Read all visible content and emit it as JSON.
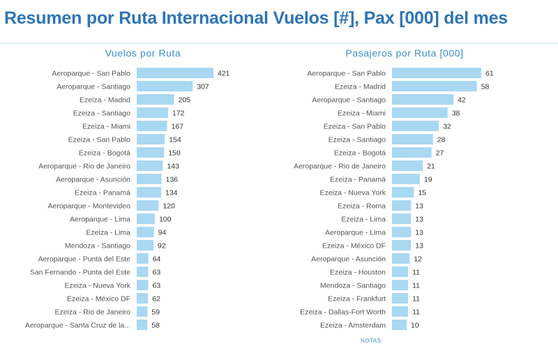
{
  "page": {
    "title": "Resumen por Ruta Internacional Vuelos [#], Pax [000] del mes",
    "notes_label": "NOTAS:"
  },
  "colors": {
    "title": "#2e74b5",
    "bar": "#a9d8f2",
    "chart_title": "#3b8fcc"
  },
  "chart_data": [
    {
      "type": "bar",
      "orientation": "horizontal",
      "title": "Vuelos por Ruta",
      "categories": [
        "Aeroparque - San Pablo",
        "Aeroparque - Santiago",
        "Ezeiza - Madrid",
        "Ezeiza - Santiago",
        "Ezeiza - Miami",
        "Ezeiza - San Pablo",
        "Ezeiza - Bogotá",
        "Aeroparque - Rio de Janeiro",
        "Aeroparque - Asunción",
        "Ezeiza - Panamá",
        "Aeroparque - Montevideo",
        "Aeroparque - Lima",
        "Ezeiza - Lima",
        "Mendoza - Santiago",
        "Aeroparque - Punta del Este",
        "San Fernando - Punta del Este",
        "Ezeiza - Nueva York",
        "Ezeiza - México DF",
        "Ezeiza - Rio de Janeiro",
        "Aeroparque - Santa Cruz de la..."
      ],
      "values": [
        421,
        307,
        205,
        172,
        167,
        154,
        150,
        143,
        136,
        134,
        120,
        100,
        94,
        92,
        64,
        63,
        63,
        62,
        59,
        58
      ],
      "data_labels": true
    },
    {
      "type": "bar",
      "orientation": "horizontal",
      "title": "Pasajeros por Ruta [000]",
      "categories": [
        "Aeroparque - San Pablo",
        "Ezeiza - Madrid",
        "Aeroparque - Santiago",
        "Ezeiza - Miami",
        "Ezeiza - San Pablo",
        "Ezeiza - Santiago",
        "Ezeiza - Bogotá",
        "Aeroparque - Rio de Janeiro",
        "Ezeiza - Panamá",
        "Ezeiza - Nueva York",
        "Ezeiza - Roma",
        "Ezeiza - Lima",
        "Aeroparque - Lima",
        "Ezeiza - México DF",
        "Aeroparque - Asunción",
        "Ezeiza - Houston",
        "Mendoza - Santiago",
        "Ezeiza - Frankfurt",
        "Ezeiza - Dallas-Fort Worth",
        "Ezeiza - Amsterdam"
      ],
      "values": [
        61,
        58,
        42,
        38,
        32,
        28,
        27,
        21,
        19,
        15,
        13,
        13,
        13,
        13,
        12,
        11,
        11,
        11,
        11,
        10
      ],
      "data_labels": true
    }
  ]
}
